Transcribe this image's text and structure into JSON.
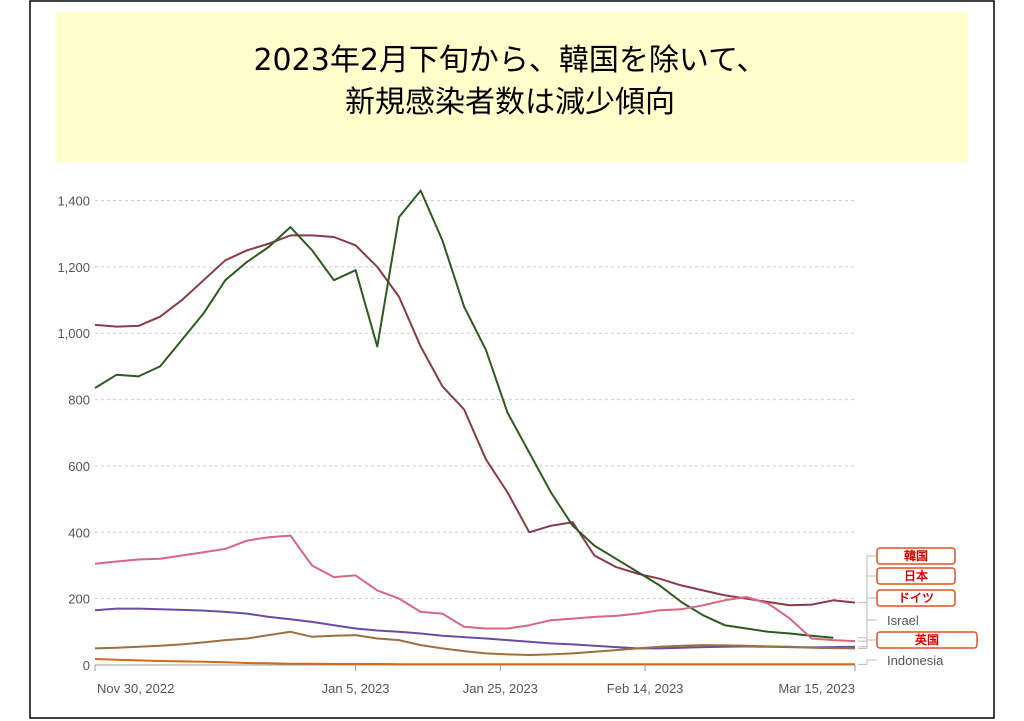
{
  "chart_data": {
    "type": "line",
    "title": [
      "2023年2月下旬から、韓国を除いて、",
      "新規感染者数は減少傾向"
    ],
    "x": [
      "2022-11-30",
      "2022-12-03",
      "2022-12-06",
      "2022-12-09",
      "2022-12-12",
      "2022-12-15",
      "2022-12-18",
      "2022-12-21",
      "2022-12-24",
      "2022-12-27",
      "2022-12-30",
      "2023-01-02",
      "2023-01-05",
      "2023-01-08",
      "2023-01-11",
      "2023-01-14",
      "2023-01-17",
      "2023-01-20",
      "2023-01-23",
      "2023-01-26",
      "2023-01-29",
      "2023-02-01",
      "2023-02-04",
      "2023-02-07",
      "2023-02-10",
      "2023-02-13",
      "2023-02-16",
      "2023-02-19",
      "2023-02-22",
      "2023-02-25",
      "2023-02-28",
      "2023-03-03",
      "2023-03-06",
      "2023-03-09",
      "2023-03-12",
      "2023-03-15"
    ],
    "series": [
      {
        "name": "韓国",
        "color": "#8b3a45",
        "values": [
          1025,
          1020,
          1022,
          1050,
          1100,
          1160,
          1220,
          1250,
          1270,
          1295,
          1295,
          1290,
          1265,
          1200,
          1110,
          960,
          840,
          770,
          620,
          520,
          400,
          420,
          430,
          330,
          295,
          275,
          260,
          240,
          225,
          210,
          200,
          190,
          180,
          182,
          195,
          188
        ]
      },
      {
        "name": "日本",
        "color": "#2d5a1e",
        "values": [
          835,
          875,
          870,
          900,
          980,
          1060,
          1160,
          1215,
          1260,
          1320,
          1250,
          1160,
          1190,
          960,
          1350,
          1430,
          1280,
          1080,
          950,
          760,
          640,
          520,
          420,
          360,
          320,
          280,
          240,
          190,
          150,
          120,
          110,
          100,
          95,
          88,
          82,
          null
        ]
      },
      {
        "name": "ドイツ",
        "color": "#d9667f",
        "values": [
          305,
          312,
          318,
          320,
          330,
          340,
          350,
          375,
          385,
          390,
          300,
          265,
          270,
          225,
          200,
          160,
          155,
          115,
          110,
          110,
          120,
          135,
          140,
          145,
          148,
          155,
          165,
          168,
          180,
          195,
          205,
          185,
          140,
          80,
          75,
          72
        ]
      },
      {
        "name": "Israel",
        "color": "#6a4aa8",
        "values": [
          165,
          170,
          170,
          168,
          166,
          164,
          160,
          155,
          145,
          138,
          130,
          120,
          110,
          104,
          100,
          95,
          88,
          84,
          80,
          75,
          70,
          65,
          62,
          58,
          54,
          50,
          50,
          52,
          54,
          55,
          56,
          55,
          54,
          53,
          54,
          55
        ]
      },
      {
        "name": "英国",
        "color": "#9c7040",
        "values": [
          50,
          52,
          55,
          58,
          62,
          68,
          75,
          80,
          90,
          100,
          85,
          88,
          90,
          80,
          75,
          60,
          50,
          42,
          35,
          32,
          30,
          32,
          35,
          40,
          45,
          50,
          55,
          58,
          60,
          59,
          58,
          56,
          55,
          52,
          51,
          50
        ]
      },
      {
        "name": "Indonesia",
        "color": "#d2691e",
        "values": [
          18,
          16,
          14,
          12,
          11,
          10,
          8,
          6,
          5,
          4,
          4,
          3,
          3,
          3,
          2,
          2,
          2,
          2,
          2,
          2,
          2,
          2,
          2,
          2,
          2,
          2,
          2,
          2,
          2,
          2,
          2,
          2,
          2,
          2,
          2,
          2
        ]
      }
    ],
    "xlim": [
      "2022-11-30",
      "2023-03-15"
    ],
    "xticks": [
      {
        "value": "2022-11-30",
        "label": "Nov 30, 2022"
      },
      {
        "value": "2023-01-05",
        "label": "Jan 5, 2023"
      },
      {
        "value": "2023-01-25",
        "label": "Jan 25, 2023"
      },
      {
        "value": "2023-02-14",
        "label": "Feb 14, 2023"
      },
      {
        "value": "2023-03-15",
        "label": "Mar 15, 2023"
      }
    ],
    "ylim": [
      0,
      1480
    ],
    "yticks": [
      0,
      200,
      400,
      600,
      800,
      {
        "value": 1000,
        "label": "1,000"
      },
      {
        "value": 1200,
        "label": "1,200"
      },
      {
        "value": 1400,
        "label": "1,400"
      }
    ],
    "grid": true
  }
}
